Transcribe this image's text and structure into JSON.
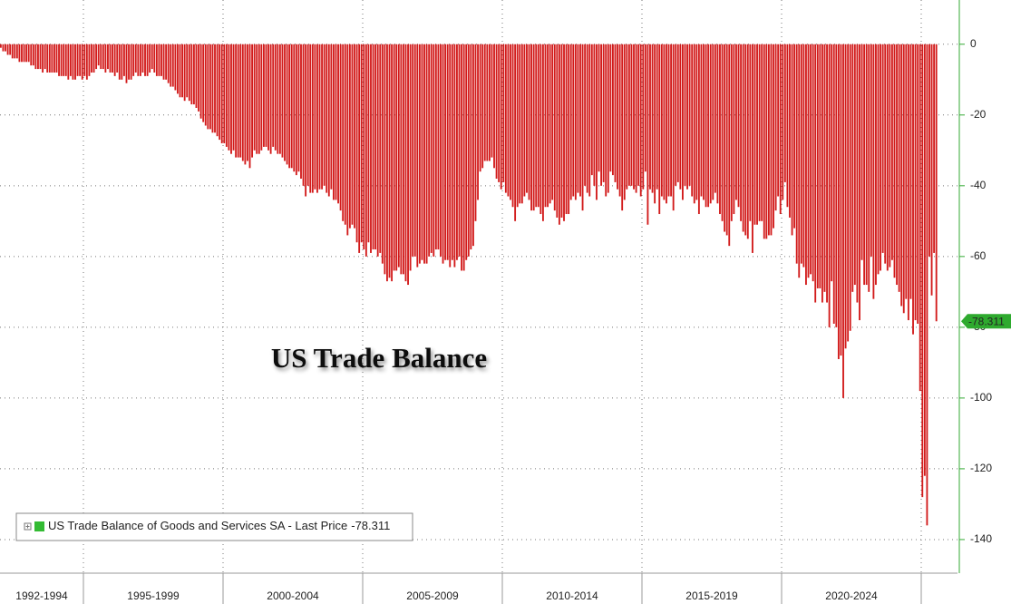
{
  "chart_data": {
    "type": "bar",
    "title": "US Trade Balance",
    "series_name": "US Trade Balance of Goods and Services SA - Last Price",
    "color": "#d21a1a",
    "ylim": [
      -149.5,
      12.5
    ],
    "yticks": [
      0,
      -20,
      -40,
      -60,
      -80,
      -100,
      -120,
      -140
    ],
    "grid": true,
    "xticks": [
      {
        "value": 0,
        "label": "1992-1994"
      },
      {
        "value": 36,
        "label": "1995-1999"
      },
      {
        "value": 96,
        "label": "2000-2004"
      },
      {
        "value": 156,
        "label": "2005-2009"
      },
      {
        "value": 216,
        "label": "2010-2014"
      },
      {
        "value": 276,
        "label": "2015-2019"
      },
      {
        "value": 336,
        "label": "2020-2024"
      }
    ],
    "categories": [
      null,
      null,
      null,
      null,
      null,
      null,
      null,
      null,
      null,
      null,
      null,
      null,
      null,
      null,
      null,
      null,
      null,
      null,
      null,
      null,
      null,
      null,
      null,
      null,
      null,
      null,
      null,
      null,
      null,
      null,
      null,
      null,
      null,
      null,
      null,
      null,
      null,
      null,
      null,
      null,
      null,
      null,
      null,
      null,
      null,
      null,
      null,
      null,
      null,
      null,
      null,
      null,
      null,
      null,
      null,
      null,
      null,
      null,
      null,
      null,
      null,
      null,
      null,
      null,
      null,
      null,
      null,
      null,
      null,
      null,
      null,
      null,
      null,
      null,
      null,
      null,
      null,
      null,
      null,
      null,
      null,
      null,
      null,
      null,
      null,
      null,
      null,
      null,
      null,
      null,
      null,
      null,
      null,
      null,
      null,
      null,
      null,
      null,
      null,
      null,
      null,
      null,
      null,
      null,
      null,
      null,
      null,
      null,
      null,
      null,
      null,
      null,
      null,
      null,
      null,
      null,
      null,
      null,
      null,
      null,
      null,
      null,
      null,
      null,
      null,
      null,
      null,
      null,
      null,
      null,
      null,
      null,
      null,
      null,
      null,
      null,
      null,
      null,
      null,
      null,
      null,
      null,
      null,
      null,
      null,
      null,
      null,
      null,
      null,
      null,
      null,
      null,
      null,
      null,
      null,
      null,
      null,
      null,
      null,
      null,
      null,
      null,
      null,
      null,
      null,
      null,
      null,
      null,
      null,
      null,
      null,
      null,
      null,
      null,
      null,
      null,
      null,
      null,
      null,
      null,
      null,
      null,
      null,
      null,
      null,
      null,
      null,
      null,
      null,
      null,
      null,
      null,
      null,
      null,
      null,
      null,
      null,
      null,
      null,
      null,
      null,
      null,
      null,
      null,
      null,
      null,
      null,
      null,
      null,
      null,
      null,
      null,
      null,
      null,
      null,
      null,
      null,
      null,
      null,
      null,
      null,
      null,
      null,
      null,
      null,
      null,
      null,
      null,
      null,
      null,
      null,
      null,
      null,
      null,
      null,
      null,
      null,
      null,
      null,
      null,
      null,
      null,
      null,
      null,
      null,
      null,
      null,
      null,
      null,
      null,
      null,
      null,
      null,
      null,
      null,
      null,
      null,
      null,
      null,
      null,
      null,
      null,
      null,
      null,
      null,
      null,
      null,
      null,
      null,
      null,
      null,
      null,
      null,
      null,
      null,
      null,
      null,
      null,
      null,
      null,
      null,
      null,
      null,
      null,
      null,
      null,
      null,
      null,
      null,
      null,
      null,
      null,
      null,
      null,
      null,
      null,
      null,
      null,
      null,
      null,
      null,
      null,
      null,
      null,
      null,
      null,
      null,
      null,
      null,
      null,
      null,
      null,
      null,
      null,
      null,
      null,
      null,
      null,
      null,
      null,
      null,
      null,
      null,
      null,
      null,
      null,
      null,
      null,
      null,
      null,
      null,
      null,
      null,
      null,
      null,
      null,
      null,
      null,
      null,
      null,
      null,
      null,
      null,
      null,
      null,
      null,
      null,
      null,
      null,
      null,
      null,
      null,
      null,
      null,
      null,
      null,
      null,
      null,
      null,
      null,
      null,
      null,
      null,
      null,
      null,
      null,
      null,
      null,
      null,
      null,
      null,
      null,
      null,
      null,
      null,
      null,
      null,
      null,
      null,
      null,
      null,
      null,
      null,
      null,
      null,
      null,
      null,
      null,
      null,
      null,
      null,
      null,
      null,
      null,
      null,
      null,
      null,
      null,
      null,
      null,
      null,
      null,
      null
    ],
    "values": [
      -1,
      -2,
      -2,
      -3,
      -3,
      -4,
      -4,
      -4,
      -5,
      -5,
      -5,
      -5,
      -5,
      -6,
      -6,
      -7,
      -7,
      -7,
      -8,
      -7,
      -8,
      -8,
      -8,
      -8,
      -8,
      -9,
      -9,
      -9,
      -9,
      -10,
      -9,
      -10,
      -10,
      -9,
      -9,
      -10,
      -9,
      -10,
      -9,
      -8,
      -8,
      -7,
      -6,
      -7,
      -7,
      -8,
      -7,
      -8,
      -8,
      -9,
      -8,
      -10,
      -10,
      -9,
      -11,
      -10,
      -10,
      -9,
      -8,
      -9,
      -9,
      -8,
      -9,
      -9,
      -8,
      -7,
      -8,
      -9,
      -9,
      -9,
      -10,
      -10,
      -11,
      -12,
      -12,
      -13,
      -14,
      -15,
      -15,
      -16,
      -15,
      -16,
      -17,
      -17,
      -18,
      -19,
      -21,
      -22,
      -23,
      -24,
      -24,
      -25,
      -25,
      -26,
      -27,
      -28,
      -28,
      -29,
      -30,
      -31,
      -30,
      -32,
      -32,
      -32,
      -33,
      -34,
      -33,
      -35,
      -32,
      -30,
      -31,
      -31,
      -30,
      -29,
      -29,
      -30,
      -31,
      -29,
      -30,
      -31,
      -31,
      -32,
      -33,
      -34,
      -35,
      -35,
      -36,
      -37,
      -36,
      -38,
      -40,
      -43,
      -40,
      -42,
      -42,
      -41,
      -42,
      -41,
      -41,
      -40,
      -42,
      -43,
      -41,
      -44,
      -44,
      -45,
      -47,
      -50,
      -51,
      -54,
      -52,
      -51,
      -52,
      -56,
      -59,
      -56,
      -58,
      -60,
      -56,
      -59,
      -58,
      -58,
      -60,
      -59,
      -62,
      -65,
      -67,
      -66,
      -67,
      -64,
      -64,
      -63,
      -65,
      -65,
      -67,
      -68,
      -64,
      -60,
      -60,
      -63,
      -62,
      -61,
      -62,
      -62,
      -60,
      -59,
      -60,
      -58,
      -58,
      -60,
      -62,
      -61,
      -61,
      -63,
      -61,
      -63,
      -61,
      -60,
      -64,
      -64,
      -61,
      -60,
      -58,
      -57,
      -50,
      -44,
      -36,
      -35,
      -33,
      -33,
      -33,
      -32,
      -35,
      -38,
      -39,
      -41,
      -39,
      -42,
      -43,
      -44,
      -46,
      -50,
      -46,
      -45,
      -45,
      -43,
      -42,
      -44,
      -47,
      -47,
      -46,
      -46,
      -48,
      -50,
      -46,
      -46,
      -45,
      -44,
      -47,
      -49,
      -51,
      -49,
      -50,
      -48,
      -48,
      -44,
      -43,
      -44,
      -42,
      -43,
      -47,
      -40,
      -42,
      -43,
      -37,
      -40,
      -44,
      -36,
      -40,
      -39,
      -43,
      -42,
      -36,
      -37,
      -39,
      -41,
      -43,
      -47,
      -44,
      -41,
      -40,
      -40,
      -41,
      -42,
      -40,
      -43,
      -41,
      -36,
      -51,
      -41,
      -42,
      -45,
      -41,
      -48,
      -43,
      -44,
      -45,
      -43,
      -43,
      -47,
      -40,
      -39,
      -41,
      -44,
      -40,
      -41,
      -40,
      -43,
      -45,
      -44,
      -48,
      -43,
      -44,
      -46,
      -46,
      -45,
      -44,
      -42,
      -45,
      -48,
      -50,
      -53,
      -54,
      -57,
      -50,
      -48,
      -44,
      -46,
      -50,
      -53,
      -54,
      -55,
      -50,
      -59,
      -51,
      -51,
      -50,
      -50,
      -55,
      -55,
      -54,
      -54,
      -52,
      -47,
      -43,
      -48,
      -44,
      -39,
      -46,
      -49,
      -54,
      -52,
      -62,
      -66,
      -62,
      -63,
      -68,
      -66,
      -65,
      -67,
      -73,
      -69,
      -69,
      -73,
      -70,
      -73,
      -80,
      -67,
      -79,
      -80,
      -89,
      -88,
      -100,
      -86,
      -84,
      -81,
      -70,
      -68,
      -73,
      -78,
      -61,
      -68,
      -68,
      -70,
      -60,
      -72,
      -68,
      -65,
      -64,
      -59,
      -62,
      -64,
      -63,
      -61,
      -66,
      -68,
      -70,
      -74,
      -76,
      -72,
      -78,
      -72,
      -82,
      -78,
      -79,
      -98,
      -128,
      -122,
      -136,
      -60,
      -71,
      -59,
      -78.311
    ]
  }
}
